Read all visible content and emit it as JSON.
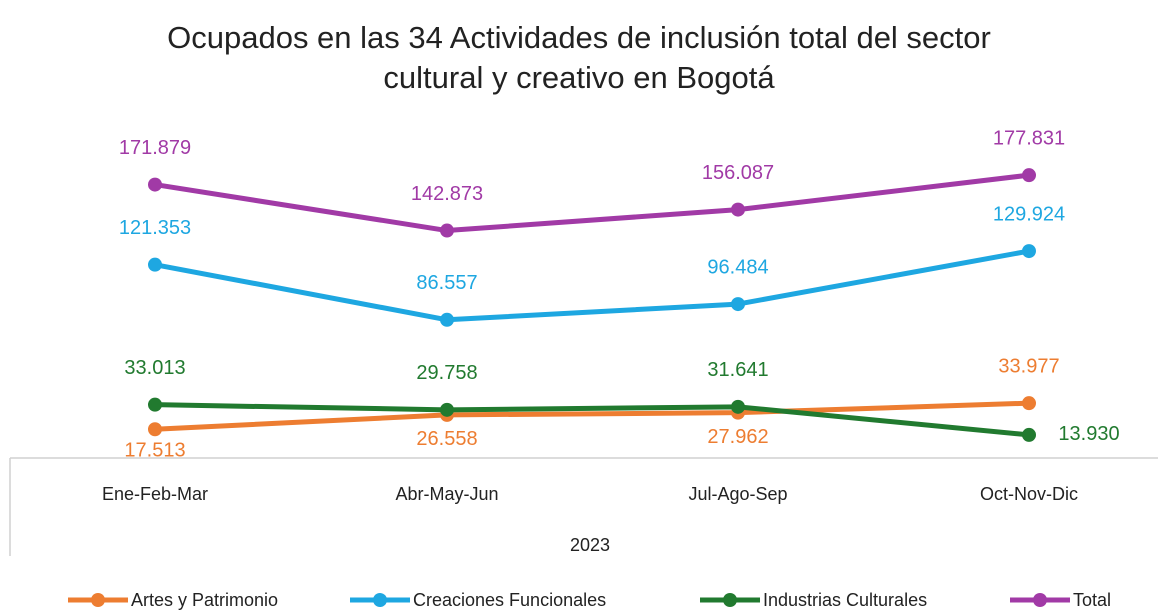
{
  "chart_data": {
    "type": "line",
    "title": "Ocupados en las 34 Actividades de inclusión total del sector cultural y creativo en Bogotá",
    "categories": [
      "Ene-Feb-Mar",
      "Abr-May-Jun",
      "Jul-Ago-Sep",
      "Oct-Nov-Dic"
    ],
    "category_group": "2023",
    "ylim": [
      0,
      200000
    ],
    "legend": "bottom",
    "series": [
      {
        "name": "Artes y Patrimonio",
        "color": "#ed7d31",
        "values": [
          17513,
          26558,
          27962,
          33977
        ],
        "value_labels": [
          "17.513",
          "26.558",
          "27.962",
          "33.977"
        ]
      },
      {
        "name": "Creaciones Funcionales",
        "color": "#1ea7e1",
        "values": [
          121353,
          86557,
          96484,
          129924
        ],
        "value_labels": [
          "121.353",
          "86.557",
          "96.484",
          "129.924"
        ]
      },
      {
        "name": "Industrias Culturales",
        "color": "#217a2f",
        "values": [
          33013,
          29758,
          31641,
          13930
        ],
        "value_labels": [
          "33.013",
          "29.758",
          "31.641",
          "13.930"
        ]
      },
      {
        "name": "Total",
        "color": "#a13aa6",
        "values": [
          171879,
          142873,
          156087,
          177831
        ],
        "value_labels": [
          "171.879",
          "142.873",
          "156.087",
          "177.831"
        ]
      }
    ]
  }
}
